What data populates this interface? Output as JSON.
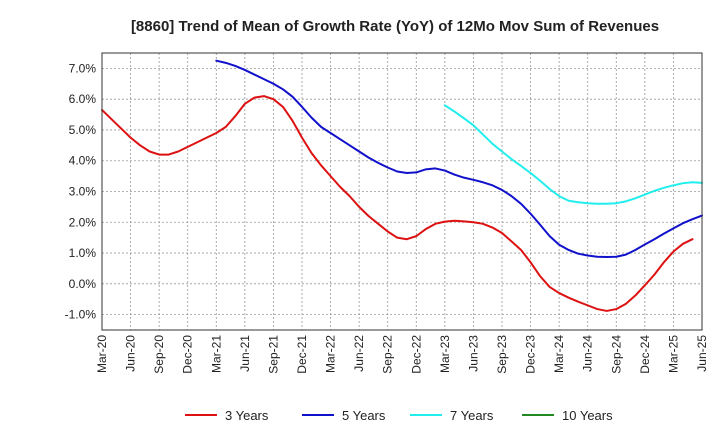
{
  "chart_data": {
    "type": "line",
    "title": "[8860]  Trend of Mean of Growth Rate (YoY) of 12Mo Mov Sum of Revenues",
    "xlabel": "",
    "ylabel": "",
    "ylim": [
      -1.5,
      7.5
    ],
    "y_ticks": [
      7.0,
      6.0,
      5.0,
      4.0,
      3.0,
      2.0,
      1.0,
      0.0,
      -1.0
    ],
    "y_tick_labels": [
      "7.0%",
      "6.0%",
      "5.0%",
      "4.0%",
      "3.0%",
      "2.0%",
      "1.0%",
      "0.0%",
      "-1.0%"
    ],
    "x_tick_labels": [
      "Mar-20",
      "Jun-20",
      "Sep-20",
      "Dec-20",
      "Mar-21",
      "Jun-21",
      "Sep-21",
      "Dec-21",
      "Mar-22",
      "Jun-22",
      "Sep-22",
      "Dec-22",
      "Mar-23",
      "Jun-23",
      "Sep-23",
      "Dec-23",
      "Mar-24",
      "Jun-24",
      "Sep-24",
      "Dec-24",
      "Mar-25",
      "Jun-25"
    ],
    "grid": true,
    "legend_position": "bottom",
    "series": [
      {
        "name": "3 Years",
        "color": "#dd1111",
        "start_index": 0,
        "values": [
          5.65,
          5.35,
          5.05,
          4.75,
          4.5,
          4.3,
          4.2,
          4.2,
          4.3,
          4.45,
          4.6,
          4.75,
          4.9,
          5.1,
          5.45,
          5.85,
          6.05,
          6.1,
          6.0,
          5.75,
          5.3,
          4.75,
          4.25,
          3.85,
          3.5,
          3.15,
          2.85,
          2.5,
          2.2,
          1.95,
          1.7,
          1.5,
          1.45,
          1.55,
          1.78,
          1.95,
          2.02,
          2.05,
          2.03,
          2.0,
          1.95,
          1.83,
          1.65,
          1.38,
          1.1,
          0.7,
          0.25,
          -0.1,
          -0.3,
          -0.45,
          -0.58,
          -0.7,
          -0.82,
          -0.88,
          -0.82,
          -0.65,
          -0.38,
          -0.05,
          0.3,
          0.7,
          1.05,
          1.3,
          1.45
        ]
      },
      {
        "name": "5 Years",
        "color": "#1111cc",
        "start_index": 12,
        "values": [
          7.25,
          7.18,
          7.08,
          6.95,
          6.8,
          6.65,
          6.5,
          6.32,
          6.08,
          5.75,
          5.4,
          5.1,
          4.9,
          4.7,
          4.5,
          4.3,
          4.1,
          3.93,
          3.78,
          3.65,
          3.6,
          3.62,
          3.72,
          3.75,
          3.68,
          3.55,
          3.45,
          3.38,
          3.3,
          3.2,
          3.05,
          2.85,
          2.6,
          2.28,
          1.92,
          1.55,
          1.27,
          1.1,
          0.98,
          0.92,
          0.88,
          0.87,
          0.88,
          0.95,
          1.1,
          1.28,
          1.45,
          1.63,
          1.8,
          1.97,
          2.1,
          2.22
        ]
      },
      {
        "name": "7 Years",
        "color": "#22eeee",
        "start_index": 36,
        "values": [
          5.8,
          5.6,
          5.38,
          5.15,
          4.85,
          4.55,
          4.3,
          4.05,
          3.83,
          3.6,
          3.35,
          3.08,
          2.85,
          2.7,
          2.65,
          2.62,
          2.6,
          2.6,
          2.62,
          2.68,
          2.78,
          2.9,
          3.02,
          3.12,
          3.2,
          3.27,
          3.3,
          3.28
        ]
      },
      {
        "name": "10 Years",
        "color": "#228822",
        "start_index": 0,
        "values": []
      }
    ]
  }
}
